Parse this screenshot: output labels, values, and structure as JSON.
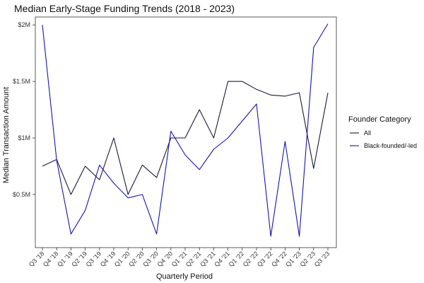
{
  "chart_data": {
    "type": "line",
    "title": "Median Early-Stage Funding Trends (2018 - 2023)",
    "xlabel": "Quarterly Period",
    "ylabel": "Median Transaction Amount",
    "categories": [
      "Q3 '18",
      "Q4 '18",
      "Q1 '19",
      "Q2 '19",
      "Q3 '19",
      "Q4 '19",
      "Q1 '20",
      "Q2 '20",
      "Q3 '20",
      "Q4 '20",
      "Q1 '21",
      "Q2 '21",
      "Q3 '21",
      "Q4 '21",
      "Q1 '22",
      "Q2 '22",
      "Q3 '22",
      "Q4 '22",
      "Q1 '23",
      "Q2 '23",
      "Q3 '23"
    ],
    "yticks": [
      {
        "value": 0.5,
        "label": "$0.5M"
      },
      {
        "value": 1.0,
        "label": "$1M"
      },
      {
        "value": 1.5,
        "label": "$1.5M"
      },
      {
        "value": 2.0,
        "label": "$2M"
      }
    ],
    "ylim": [
      0.03,
      2.07
    ],
    "grid": false,
    "legend": {
      "title": "Founder Category",
      "position": "right"
    },
    "series": [
      {
        "name": "All",
        "color": "#1a1a3a",
        "values": [
          0.75,
          0.81,
          0.5,
          0.75,
          0.63,
          1.0,
          0.5,
          0.76,
          0.65,
          1.0,
          1.0,
          1.25,
          1.0,
          1.5,
          1.5,
          1.43,
          1.38,
          1.37,
          1.4,
          0.73,
          1.4
        ]
      },
      {
        "name": "Black-founded/-led",
        "color": "#1515b0",
        "values": [
          2.0,
          0.8,
          0.15,
          0.36,
          0.76,
          0.6,
          0.47,
          0.5,
          0.15,
          1.06,
          0.85,
          0.72,
          0.9,
          1.0,
          1.15,
          1.3,
          0.13,
          0.97,
          0.13,
          1.8,
          2.01
        ]
      }
    ]
  }
}
